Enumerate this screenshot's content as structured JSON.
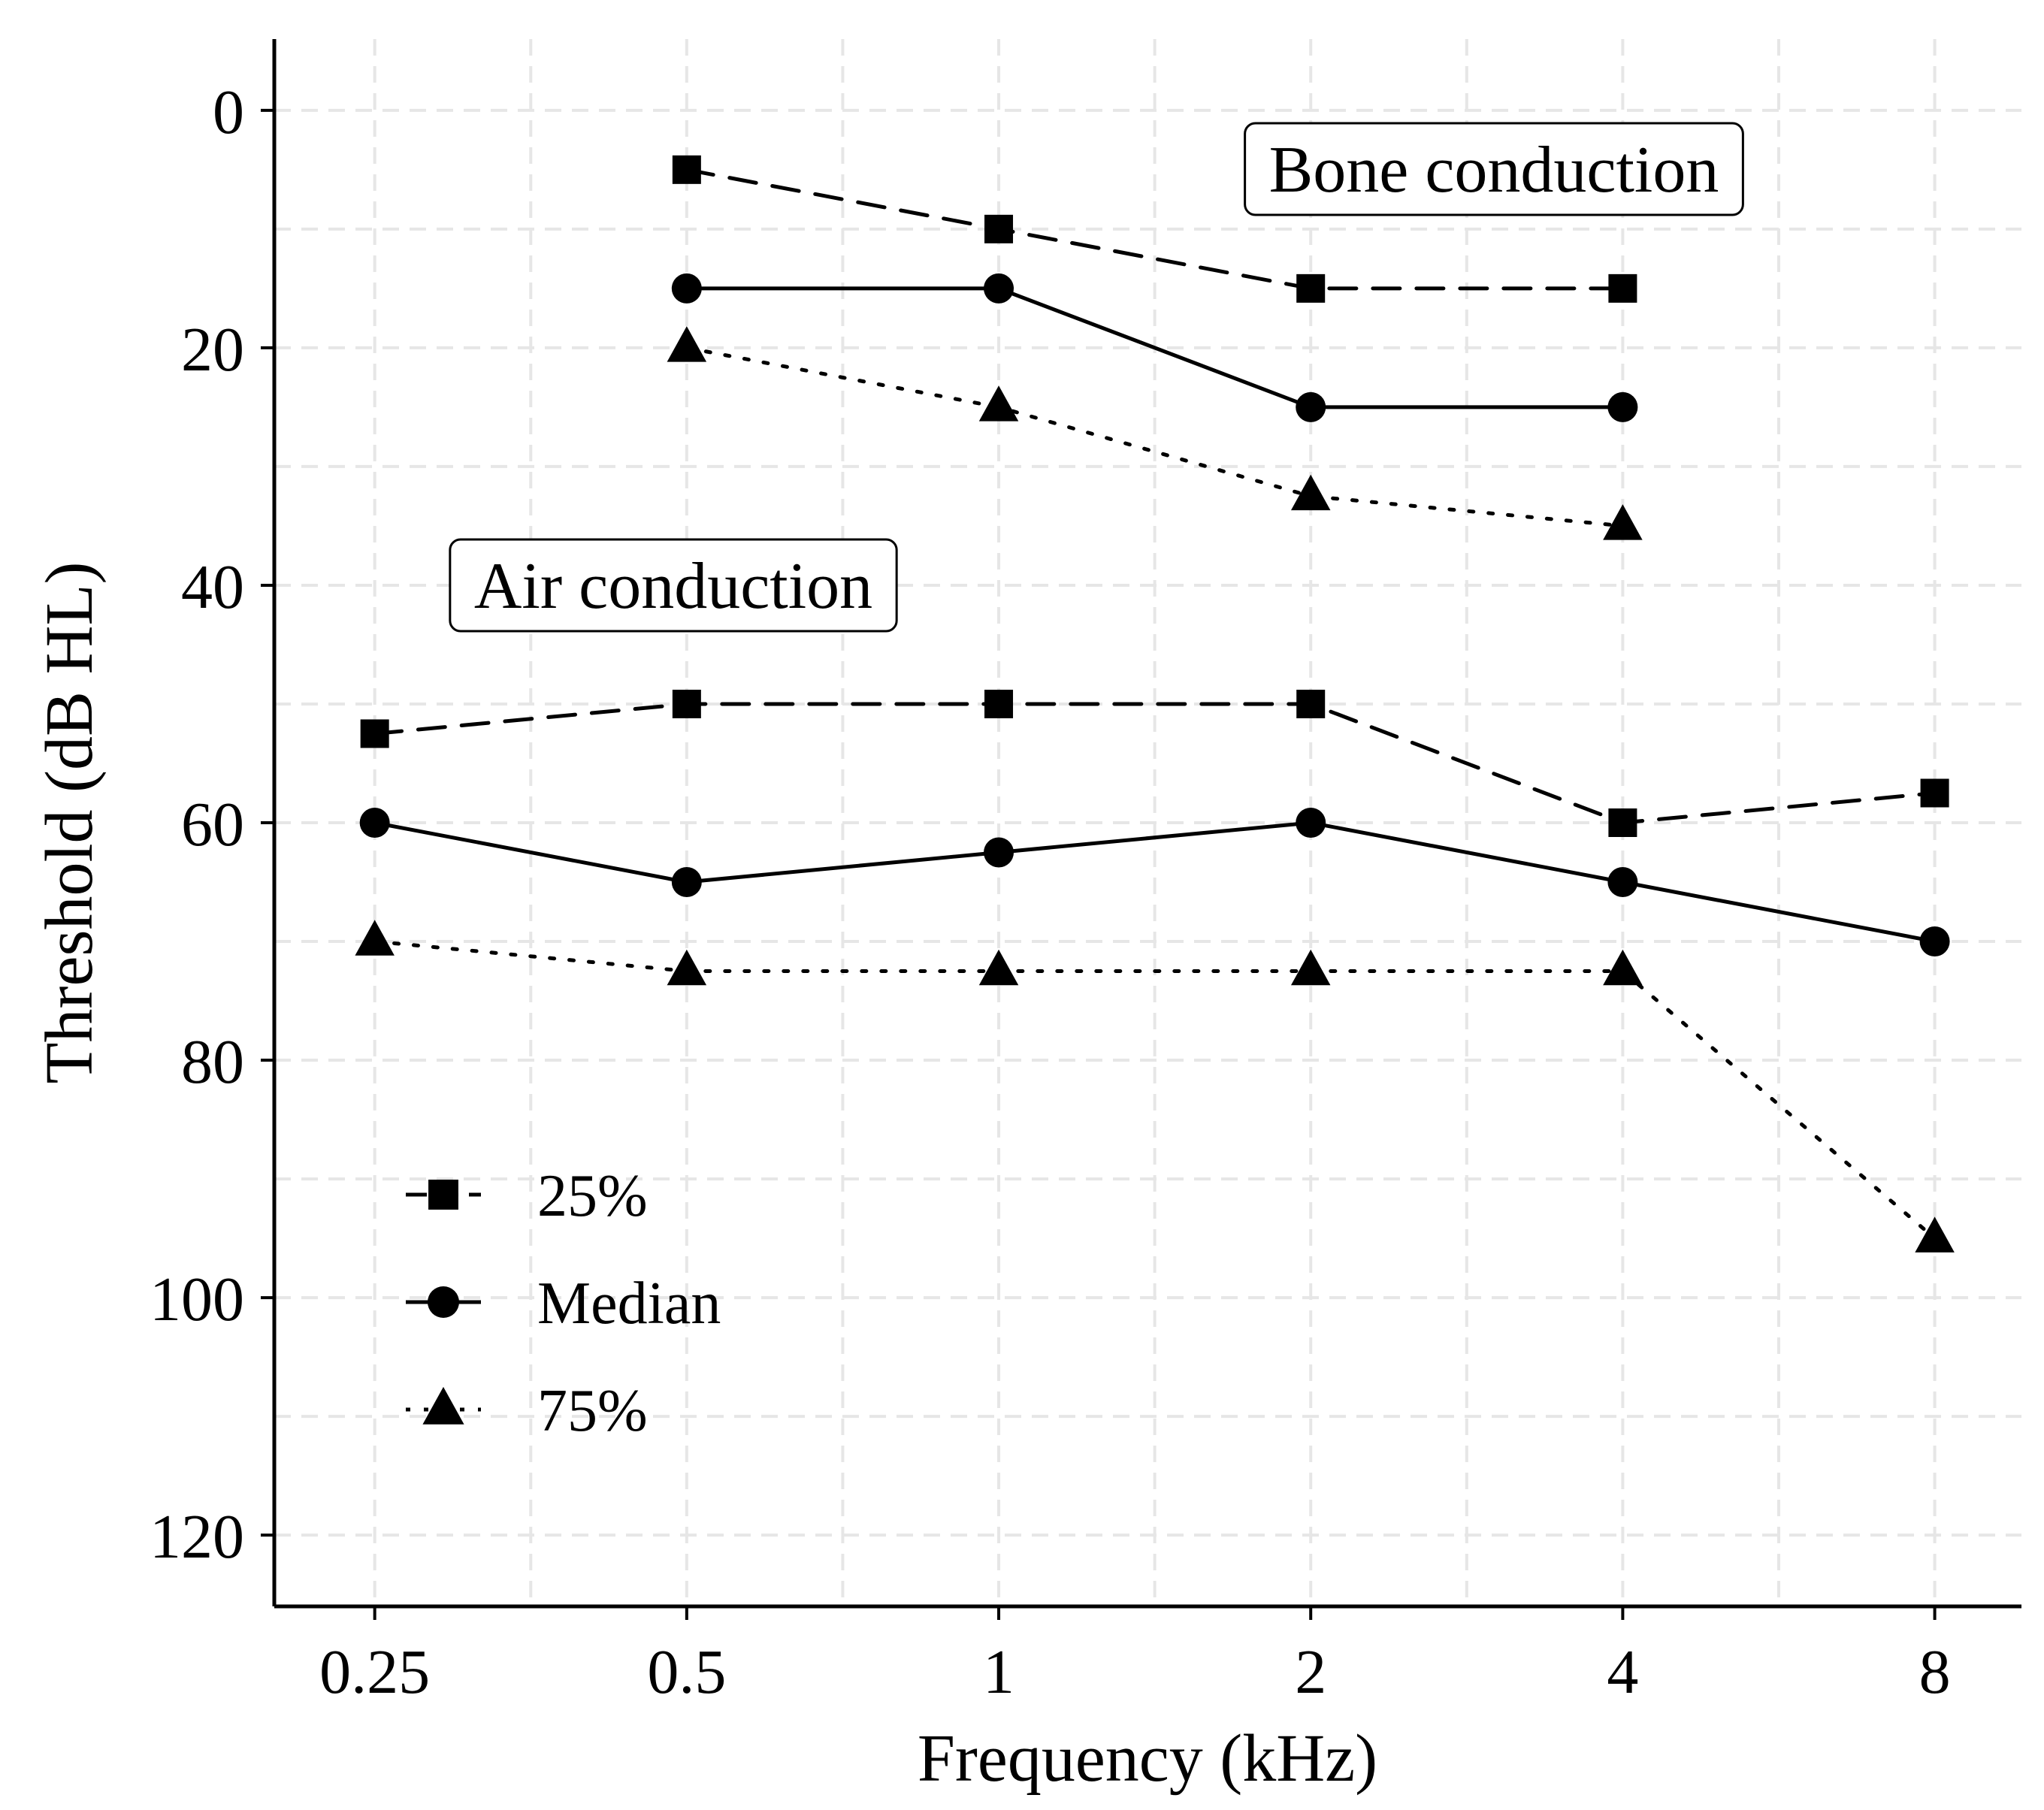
{
  "chart_data": {
    "type": "line",
    "xlabel": "Frequency (kHz)",
    "ylabel": "Threshold (dB HL)",
    "x_scale": "log2",
    "y_reversed": true,
    "grid": true,
    "legend_position": "bottom-left",
    "x": [
      0.25,
      0.5,
      1,
      2,
      4,
      8
    ],
    "x_tick_labels": [
      "0.25",
      "0.5",
      "1",
      "2",
      "4",
      "8"
    ],
    "y_ticks": [
      0,
      20,
      40,
      60,
      80,
      100,
      120
    ],
    "y_tick_labels": [
      "0",
      "20",
      "40",
      "60",
      "80",
      "100",
      "120"
    ],
    "ylim": [
      -6,
      126
    ],
    "xlim": [
      0.2,
      9.7
    ],
    "legend": [
      {
        "name": "25%",
        "marker": "square",
        "linestyle": "dashed"
      },
      {
        "name": "Median",
        "marker": "circle",
        "linestyle": "solid"
      },
      {
        "name": "75%",
        "marker": "triangle",
        "linestyle": "dotted"
      }
    ],
    "groups": [
      {
        "label": "Bone conduction",
        "series": [
          {
            "name": "25%",
            "x": [
              0.5,
              1,
              2,
              4
            ],
            "values": [
              5,
              10,
              15,
              15
            ]
          },
          {
            "name": "Median",
            "x": [
              0.5,
              1,
              2,
              4
            ],
            "values": [
              15,
              15,
              25,
              25
            ]
          },
          {
            "name": "75%",
            "x": [
              0.5,
              1,
              2,
              4
            ],
            "values": [
              20,
              25,
              32.5,
              35
            ]
          }
        ]
      },
      {
        "label": "Air conduction",
        "series": [
          {
            "name": "25%",
            "x": [
              0.25,
              0.5,
              1,
              2,
              4,
              8
            ],
            "values": [
              52.5,
              50,
              50,
              50,
              60,
              57.5
            ]
          },
          {
            "name": "Median",
            "x": [
              0.25,
              0.5,
              1,
              2,
              4,
              8
            ],
            "values": [
              60,
              65,
              62.5,
              60,
              65,
              70
            ]
          },
          {
            "name": "75%",
            "x": [
              0.25,
              0.5,
              1,
              2,
              4,
              8
            ],
            "values": [
              70,
              72.5,
              72.5,
              72.5,
              72.5,
              95
            ]
          }
        ]
      }
    ],
    "colors": {
      "ink": "#000000",
      "grid": "#e6e6e6",
      "background": "#ffffff"
    }
  }
}
